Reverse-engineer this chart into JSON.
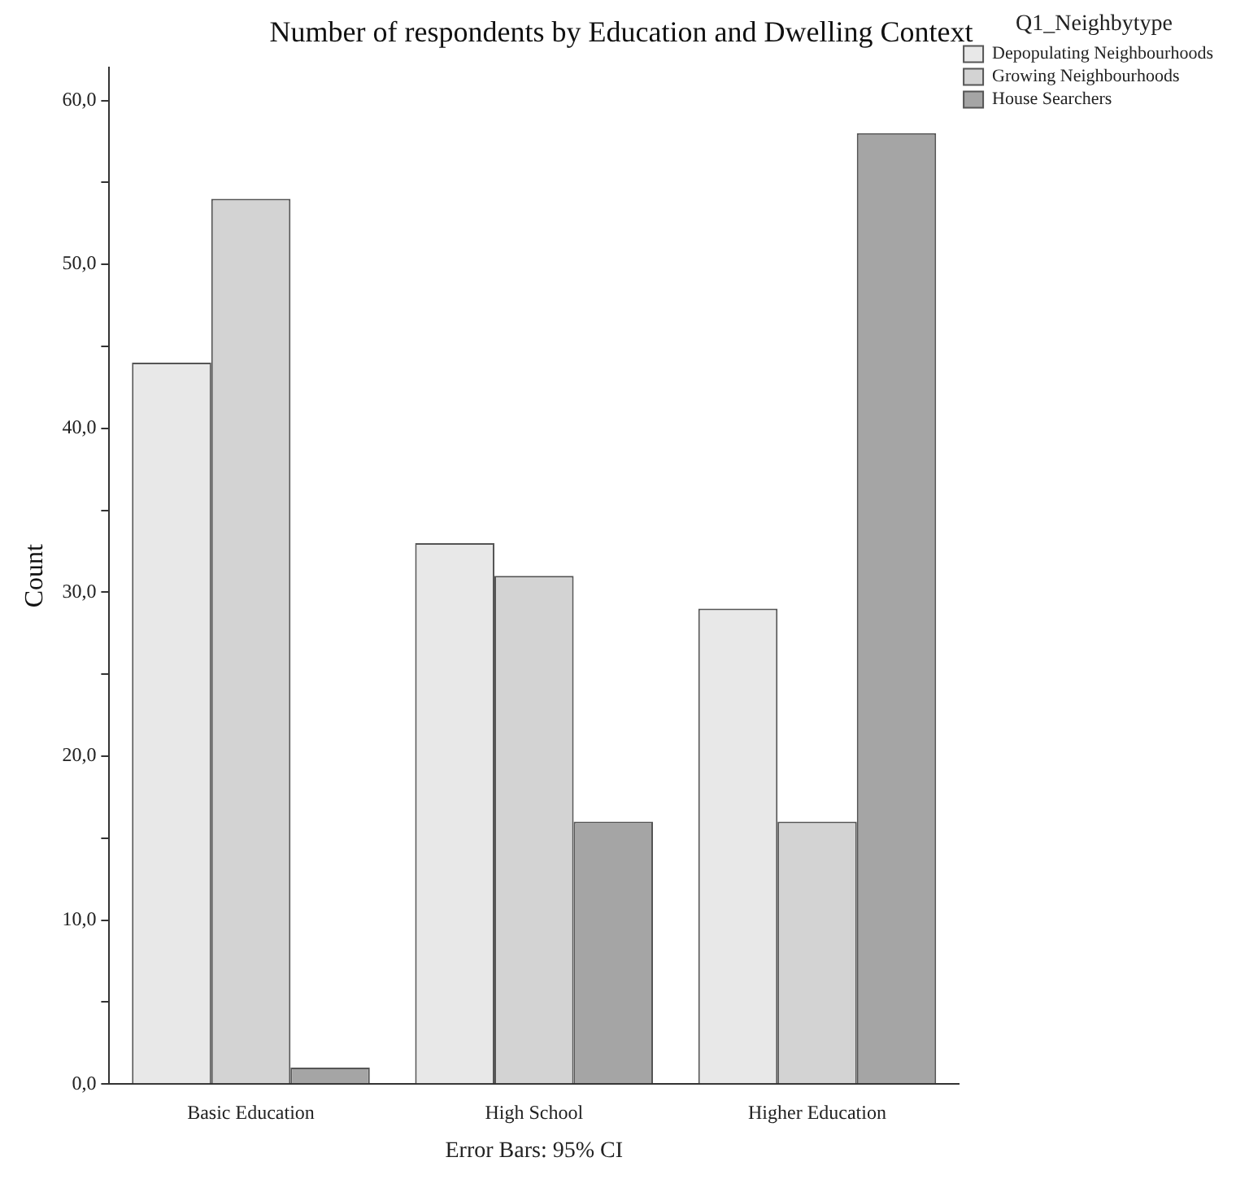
{
  "chart_data": {
    "type": "bar",
    "title": "Number of respondents by Education and Dwelling Context",
    "ylabel": "Count",
    "legend_title": "Q1_Neighbytype",
    "annotations": [
      "Error Bars: 95% CI"
    ],
    "categories": [
      "Basic Education",
      "High School",
      "Higher Education"
    ],
    "series": [
      {
        "name": "Depopulating Neighbourhoods",
        "color": "#e8e8e8",
        "values": [
          44,
          33,
          29
        ]
      },
      {
        "name": "Growing Neighbourhoods",
        "color": "#d3d3d3",
        "values": [
          54,
          31,
          16
        ]
      },
      {
        "name": "House Searchers",
        "color": "#a5a5a5",
        "values": [
          1,
          16,
          58
        ]
      }
    ],
    "ylim": [
      0,
      62
    ],
    "yticks": [
      {
        "value": 0,
        "label": "0,0"
      },
      {
        "value": 5,
        "label": null
      },
      {
        "value": 10,
        "label": "10,0"
      },
      {
        "value": 15,
        "label": null
      },
      {
        "value": 20,
        "label": "20,0"
      },
      {
        "value": 25,
        "label": null
      },
      {
        "value": 30,
        "label": "30,0"
      },
      {
        "value": 35,
        "label": null
      },
      {
        "value": 40,
        "label": "40,0"
      },
      {
        "value": 45,
        "label": null
      },
      {
        "value": 50,
        "label": "50,0"
      },
      {
        "value": 55,
        "label": null
      },
      {
        "value": 60,
        "label": "60,0"
      }
    ],
    "grid": false,
    "legend": "top right"
  }
}
